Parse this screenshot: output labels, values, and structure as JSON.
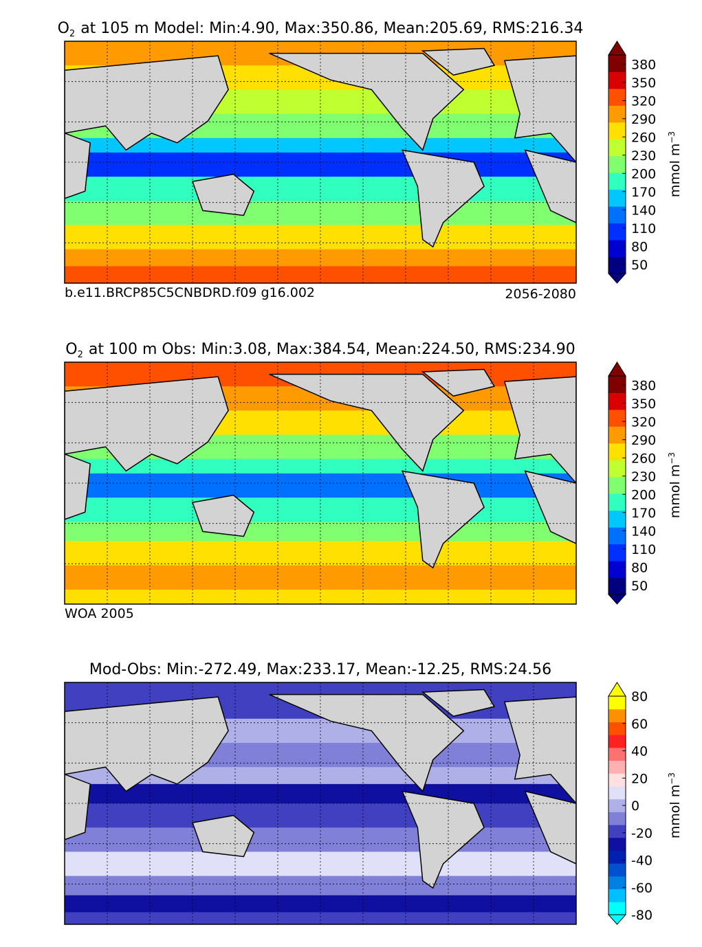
{
  "panels": [
    {
      "title": {
        "species": "O",
        "subscript": "2",
        "text": "at 105 m Model: Min:4.90, Max:350.86, Mean:205.69, RMS:216.34"
      },
      "footer_left": "b.e11.BRCP85C5CNBDRD.f09 g16.002",
      "footer_right": "2056-2080",
      "colorbar": {
        "label": "mmol m",
        "label_exponent": "−3",
        "range": [
          35,
          395
        ],
        "ticks": [
          50,
          80,
          110,
          140,
          170,
          200,
          230,
          260,
          290,
          320,
          350,
          380
        ],
        "colors": [
          "#000080",
          "#0000d0",
          "#0030ff",
          "#0070ff",
          "#00c8ff",
          "#30ffc0",
          "#80ff70",
          "#c0ff30",
          "#ffe000",
          "#ff9a00",
          "#ff5000",
          "#d80000",
          "#800000"
        ]
      }
    },
    {
      "title": {
        "species": "O",
        "subscript": "2",
        "text": "at 100 m Obs: Min:3.08, Max:384.54, Mean:224.50, RMS:234.90"
      },
      "footer_left": "WOA 2005",
      "colorbar": {
        "label": "mmol m",
        "label_exponent": "−3",
        "range": [
          35,
          395
        ],
        "ticks": [
          50,
          80,
          110,
          140,
          170,
          200,
          230,
          260,
          290,
          320,
          350,
          380
        ],
        "colors": [
          "#000080",
          "#0000d0",
          "#0030ff",
          "#0070ff",
          "#00c8ff",
          "#30ffc0",
          "#80ff70",
          "#c0ff30",
          "#ffe000",
          "#ff9a00",
          "#ff5000",
          "#d80000",
          "#800000"
        ]
      }
    },
    {
      "title": {
        "text": "Mod-Obs: Min:-272.49, Max:233.17, Mean:-12.25, RMS:24.56"
      },
      "colorbar": {
        "label": "mmol m",
        "label_exponent": "−3",
        "range": [
          -80,
          80
        ],
        "ticks": [
          -80,
          -60,
          -40,
          -20,
          0,
          20,
          40,
          60,
          80
        ],
        "colors": [
          "#00ffff",
          "#00c0ff",
          "#0080e0",
          "#0050d0",
          "#0020b0",
          "#1010a0",
          "#4040c0",
          "#8080d8",
          "#b0b0e8",
          "#e0e0f8",
          "#ffe0e0",
          "#ffb0b0",
          "#ff7070",
          "#ff2020",
          "#ff5000",
          "#ff9000",
          "#ffff00"
        ]
      }
    }
  ]
}
